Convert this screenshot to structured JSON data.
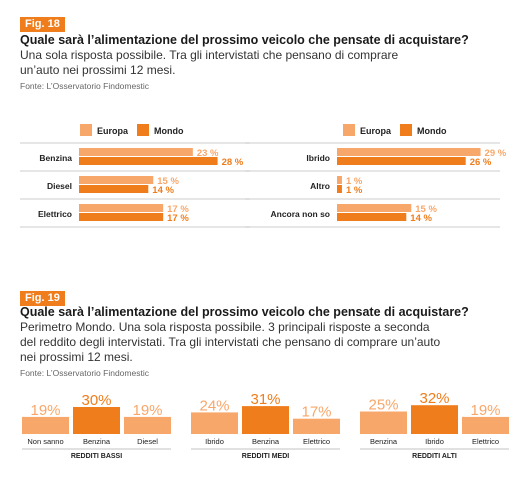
{
  "fig18": {
    "tag": "Fig. 18",
    "title": "Quale sarà l’alimentazione del prossimo veicolo che pensate di acquistare?",
    "subtitle_1": "Una sola risposta possibile. Tra gli intervistati che pensano di comprare",
    "subtitle_2": "un’auto nei prossimi 12 mesi.",
    "source": "Fonte: L’Osservatorio Findomestic"
  },
  "fig19": {
    "tag": "Fig. 19",
    "title": "Quale sarà l’alimentazione del prossimo veicolo che pensate di acquistare?",
    "subtitle_1": "Perimetro Mondo. Una sola risposta possibile. 3 principali risposte a seconda",
    "subtitle_2": "del reddito degli intervistati. Tra gli intervistati che pensano di comprare un’auto",
    "subtitle_3": "nei prossimi 12 mesi.",
    "source": "Fonte: L’Osservatorio Findomestic"
  },
  "colors": {
    "europa": "#f8a76a",
    "mondo": "#f07d1c",
    "divider": "#bbbbbb"
  },
  "chart_data": [
    {
      "type": "bar",
      "orientation": "horizontal",
      "legend": [
        "Europa",
        "Mondo"
      ],
      "categories": [
        "Benzina",
        "Diesel",
        "Elettrico"
      ],
      "series": [
        {
          "name": "Europa",
          "values": [
            23,
            15,
            17
          ]
        },
        {
          "name": "Mondo",
          "values": [
            28,
            14,
            17
          ]
        }
      ],
      "value_suffix": " %"
    },
    {
      "type": "bar",
      "orientation": "horizontal",
      "legend": [
        "Europa",
        "Mondo"
      ],
      "categories": [
        "Ibrido",
        "Altro",
        "Ancora non so"
      ],
      "series": [
        {
          "name": "Europa",
          "values": [
            29,
            1,
            15
          ]
        },
        {
          "name": "Mondo",
          "values": [
            26,
            1,
            14
          ]
        }
      ],
      "value_suffix": " %"
    },
    {
      "type": "bar",
      "group": "REDDITI BASSI",
      "categories": [
        "Non sanno",
        "Benzina",
        "Diesel"
      ],
      "values": [
        19,
        30,
        19
      ],
      "value_suffix": "%"
    },
    {
      "type": "bar",
      "group": "REDDITI MEDI",
      "categories": [
        "Ibrido",
        "Benzina",
        "Elettrico"
      ],
      "values": [
        24,
        31,
        17
      ],
      "value_suffix": "%"
    },
    {
      "type": "bar",
      "group": "REDDITI ALTI",
      "categories": [
        "Benzina",
        "Ibrido",
        "Elettrico"
      ],
      "values": [
        25,
        32,
        19
      ],
      "value_suffix": "%"
    }
  ]
}
